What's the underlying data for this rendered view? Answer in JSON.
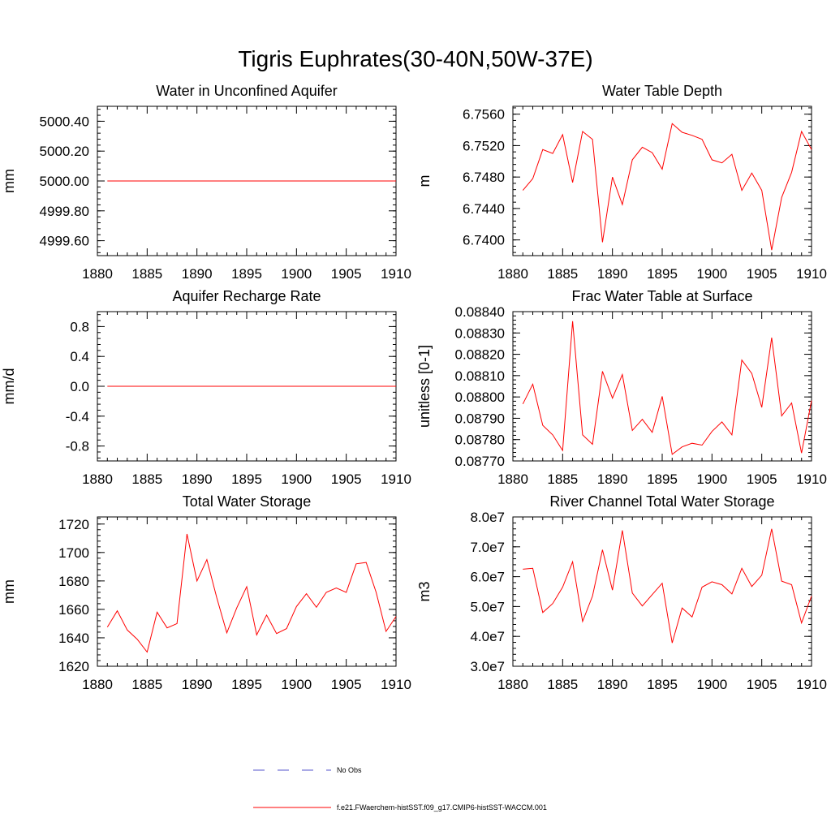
{
  "figure": {
    "title": "Tigris Euphrates(30-40N,50W-37E)"
  },
  "legend": {
    "entries": [
      {
        "label": "No Obs",
        "color": "#5555cc",
        "dash": true
      },
      {
        "label": "f.e21.FWaerchem-histSST.f09_g17.CMIP6-histSST-WACCM.001",
        "color": "#ff0000",
        "dash": false
      }
    ]
  },
  "chart_data": [
    {
      "type": "line",
      "title": "Water in Unconfined Aquifer",
      "ylabel": "mm",
      "xlim": [
        1880,
        1910
      ],
      "ylim": [
        4999.5,
        5000.5
      ],
      "xticks": [
        1880,
        1885,
        1890,
        1895,
        1900,
        1905,
        1910
      ],
      "yticks": [
        4999.6,
        4999.8,
        5000.0,
        5000.2,
        5000.4
      ],
      "ytick_labels": [
        "4999.60",
        "4999.80",
        "5000.00",
        "5000.20",
        "5000.40"
      ],
      "series": [
        {
          "x": [
            1881,
            1882,
            1883,
            1884,
            1885,
            1886,
            1887,
            1888,
            1889,
            1890,
            1891,
            1892,
            1893,
            1894,
            1895,
            1896,
            1897,
            1898,
            1899,
            1900,
            1901,
            1902,
            1903,
            1904,
            1905,
            1906,
            1907,
            1908,
            1909,
            1910
          ],
          "values": [
            5000,
            5000,
            5000,
            5000,
            5000,
            5000,
            5000,
            5000,
            5000,
            5000,
            5000,
            5000,
            5000,
            5000,
            5000,
            5000,
            5000,
            5000,
            5000,
            5000,
            5000,
            5000,
            5000,
            5000,
            5000,
            5000,
            5000,
            5000,
            5000,
            5000
          ]
        }
      ]
    },
    {
      "type": "line",
      "title": "Water Table Depth",
      "ylabel": "m",
      "xlim": [
        1880,
        1910
      ],
      "ylim": [
        6.738,
        6.757
      ],
      "xticks": [
        1880,
        1885,
        1890,
        1895,
        1900,
        1905,
        1910
      ],
      "yticks": [
        6.74,
        6.744,
        6.748,
        6.752,
        6.756
      ],
      "ytick_labels": [
        "6.7400",
        "6.7440",
        "6.7480",
        "6.7520",
        "6.7560"
      ],
      "series": [
        {
          "x": [
            1881,
            1882,
            1883,
            1884,
            1885,
            1886,
            1887,
            1888,
            1889,
            1890,
            1891,
            1892,
            1893,
            1894,
            1895,
            1896,
            1897,
            1898,
            1899,
            1900,
            1901,
            1902,
            1903,
            1904,
            1905,
            1906,
            1907,
            1908,
            1909,
            1910
          ],
          "values": [
            6.7463,
            6.7478,
            6.7515,
            6.751,
            6.7534,
            6.7473,
            6.7538,
            6.7528,
            6.7397,
            6.748,
            6.7445,
            6.7502,
            6.7518,
            6.7511,
            6.749,
            6.7548,
            6.7537,
            6.7533,
            6.7528,
            6.7502,
            6.7498,
            6.7509,
            6.7463,
            6.7485,
            6.7463,
            6.7387,
            6.7454,
            6.7486,
            6.7538,
            6.7515
          ]
        }
      ]
    },
    {
      "type": "line",
      "title": "Aquifer Recharge Rate",
      "ylabel": "mm/d",
      "xlim": [
        1880,
        1910
      ],
      "ylim": [
        -1.0,
        1.0
      ],
      "xticks": [
        1880,
        1885,
        1890,
        1895,
        1900,
        1905,
        1910
      ],
      "yticks": [
        -0.8,
        -0.4,
        0.0,
        0.4,
        0.8
      ],
      "ytick_labels": [
        "-0.8",
        "-0.4",
        "0.0",
        "0.4",
        "0.8"
      ],
      "series": [
        {
          "x": [
            1881,
            1882,
            1883,
            1884,
            1885,
            1886,
            1887,
            1888,
            1889,
            1890,
            1891,
            1892,
            1893,
            1894,
            1895,
            1896,
            1897,
            1898,
            1899,
            1900,
            1901,
            1902,
            1903,
            1904,
            1905,
            1906,
            1907,
            1908,
            1909,
            1910
          ],
          "values": [
            0,
            0,
            0,
            0,
            0,
            0,
            0,
            0,
            0,
            0,
            0,
            0,
            0,
            0,
            0,
            0,
            0,
            0,
            0,
            0,
            0,
            0,
            0,
            0,
            0,
            0,
            0,
            0,
            0,
            0
          ]
        }
      ]
    },
    {
      "type": "line",
      "title": "Frac Water Table at Surface",
      "ylabel": "unitless [0-1]",
      "xlim": [
        1880,
        1910
      ],
      "ylim": [
        0.0877,
        0.0884
      ],
      "xticks": [
        1880,
        1885,
        1890,
        1895,
        1900,
        1905,
        1910
      ],
      "yticks": [
        0.0877,
        0.0878,
        0.0879,
        0.088,
        0.0881,
        0.0882,
        0.0883,
        0.0884
      ],
      "ytick_labels": [
        "0.08770",
        "0.08780",
        "0.08790",
        "0.08800",
        "0.08810",
        "0.08820",
        "0.08830",
        "0.08840"
      ],
      "series": [
        {
          "x": [
            1881,
            1882,
            1883,
            1884,
            1885,
            1886,
            1887,
            1888,
            1889,
            1890,
            1891,
            1892,
            1893,
            1894,
            1895,
            1896,
            1897,
            1898,
            1899,
            1900,
            1901,
            1902,
            1903,
            1904,
            1905,
            1906,
            1907,
            1908,
            1909,
            1910
          ],
          "values": [
            0.087967,
            0.08806,
            0.087867,
            0.087822,
            0.087749,
            0.088355,
            0.087822,
            0.087778,
            0.08812,
            0.087994,
            0.088105,
            0.087843,
            0.087895,
            0.087834,
            0.088003,
            0.087731,
            0.087766,
            0.087783,
            0.087774,
            0.087838,
            0.087883,
            0.087822,
            0.088173,
            0.08811,
            0.087951,
            0.088278,
            0.087911,
            0.087972,
            0.087737,
            0.087983
          ]
        }
      ]
    },
    {
      "type": "line",
      "title": "Total Water Storage",
      "ylabel": "mm",
      "xlim": [
        1880,
        1910
      ],
      "ylim": [
        1620,
        1725
      ],
      "xticks": [
        1880,
        1885,
        1890,
        1895,
        1900,
        1905,
        1910
      ],
      "yticks": [
        1620,
        1640,
        1660,
        1680,
        1700,
        1720
      ],
      "ytick_labels": [
        "1620",
        "1640",
        "1660",
        "1680",
        "1700",
        "1720"
      ],
      "series": [
        {
          "x": [
            1881,
            1882,
            1883,
            1884,
            1885,
            1886,
            1887,
            1888,
            1889,
            1890,
            1891,
            1892,
            1893,
            1894,
            1895,
            1896,
            1897,
            1898,
            1899,
            1900,
            1901,
            1902,
            1903,
            1904,
            1905,
            1906,
            1907,
            1908,
            1909,
            1910
          ],
          "values": [
            1647.5,
            1659,
            1645.5,
            1639,
            1630,
            1658,
            1647,
            1650,
            1713,
            1680,
            1695,
            1668,
            1643.5,
            1661,
            1676,
            1642,
            1656,
            1643,
            1646.5,
            1662,
            1671,
            1661.5,
            1672,
            1675,
            1672,
            1692,
            1693,
            1672,
            1644.5,
            1655
          ]
        }
      ]
    },
    {
      "type": "line",
      "title": "River Channel Total Water Storage",
      "ylabel": "m3",
      "xlim": [
        1880,
        1910
      ],
      "ylim": [
        30000000,
        80000000
      ],
      "xticks": [
        1880,
        1885,
        1890,
        1895,
        1900,
        1905,
        1910
      ],
      "yticks": [
        30000000,
        40000000,
        50000000,
        60000000,
        70000000,
        80000000
      ],
      "ytick_labels": [
        "3.0e7",
        "4.0e7",
        "5.0e7",
        "6.0e7",
        "7.0e7",
        "8.0e7"
      ],
      "series": [
        {
          "x": [
            1881,
            1882,
            1883,
            1884,
            1885,
            1886,
            1887,
            1888,
            1889,
            1890,
            1891,
            1892,
            1893,
            1894,
            1895,
            1896,
            1897,
            1898,
            1899,
            1900,
            1901,
            1902,
            1903,
            1904,
            1905,
            1906,
            1907,
            1908,
            1909,
            1910
          ],
          "values": [
            62500000,
            62800000,
            48000000,
            51000000,
            56500000,
            65000000,
            45000000,
            53500000,
            69000000,
            55500000,
            75500000,
            54500000,
            50200000,
            54000000,
            57800000,
            37800000,
            49500000,
            46500000,
            56500000,
            58300000,
            57300000,
            54200000,
            62800000,
            56700000,
            60500000,
            76000000,
            58500000,
            57300000,
            44500000,
            53500000
          ]
        }
      ]
    }
  ]
}
